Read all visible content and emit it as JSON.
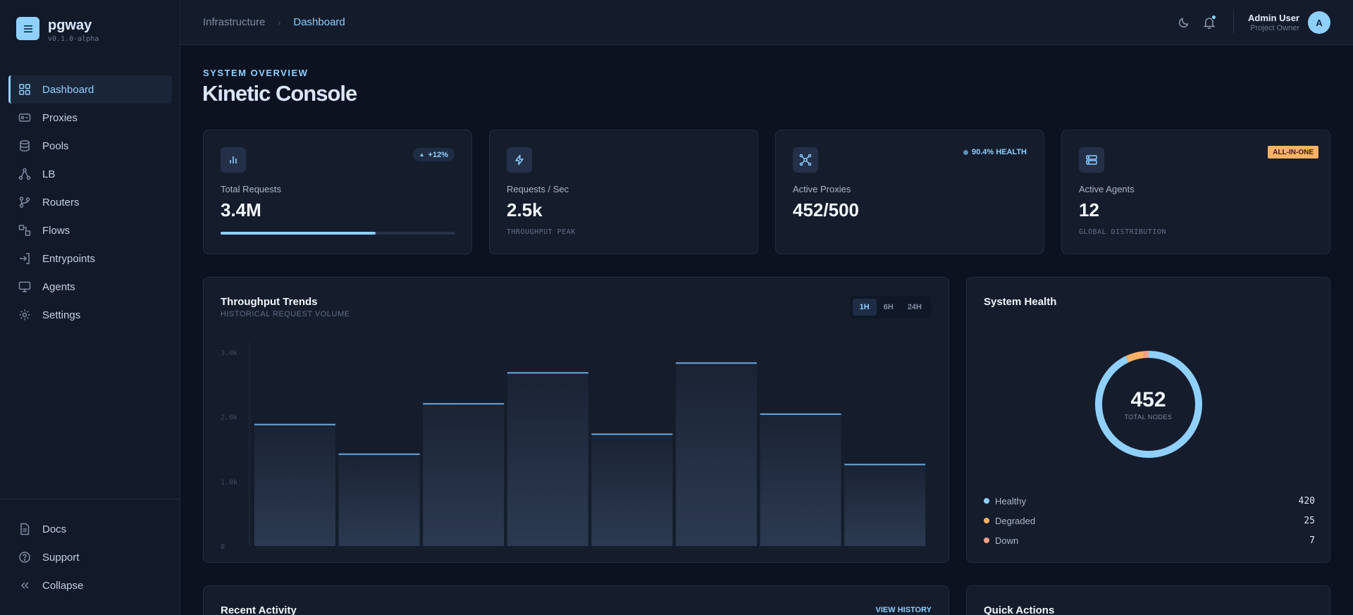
{
  "app": {
    "name": "pgway",
    "version": "v0.1.0-alpha",
    "logo_icon": "menu-icon"
  },
  "sidebar": {
    "items": [
      {
        "label": "Dashboard",
        "icon": "grid-icon",
        "active": true
      },
      {
        "label": "Proxies",
        "icon": "proxy-icon"
      },
      {
        "label": "Pools",
        "icon": "database-icon"
      },
      {
        "label": "LB",
        "icon": "network-icon"
      },
      {
        "label": "Routers",
        "icon": "git-branch-icon"
      },
      {
        "label": "Flows",
        "icon": "flow-icon"
      },
      {
        "label": "Entrypoints",
        "icon": "login-icon"
      },
      {
        "label": "Agents",
        "icon": "monitor-icon"
      },
      {
        "label": "Settings",
        "icon": "gear-icon"
      }
    ],
    "footer": [
      {
        "label": "Docs",
        "icon": "document-icon"
      },
      {
        "label": "Support",
        "icon": "help-icon"
      },
      {
        "label": "Collapse",
        "icon": "chevrons-left-icon"
      }
    ]
  },
  "header": {
    "breadcrumb": [
      "Infrastructure",
      "Dashboard"
    ],
    "user_name": "Admin User",
    "user_role": "Project Owner",
    "avatar_initial": "A"
  },
  "page": {
    "overline": "SYSTEM OVERVIEW",
    "title": "Kinetic Console"
  },
  "stats": [
    {
      "label": "Total Requests",
      "value": "3.4M",
      "badge": "+12%",
      "progress": 0.66,
      "icon": "bar-chart-icon"
    },
    {
      "label": "Requests / Sec",
      "value": "2.5k",
      "sub": "THROUGHPUT PEAK",
      "icon": "lightning-icon"
    },
    {
      "label": "Active Proxies",
      "value": "452/500",
      "badge": "90.4% HEALTH",
      "icon": "nodes-icon"
    },
    {
      "label": "Active Agents",
      "value": "12",
      "sub": "GLOBAL DISTRIBUTION",
      "badge": "ALL-IN-ONE",
      "icon": "server-icon"
    }
  ],
  "throughput": {
    "title": "Throughput Trends",
    "subtitle": "HISTORICAL REQUEST VOLUME",
    "ranges": [
      "1H",
      "6H",
      "24H"
    ],
    "active_range": "1H"
  },
  "chart_data": {
    "type": "bar",
    "title": "Throughput Trends",
    "categories": [
      "",
      "",
      "",
      "",
      "",
      "",
      "",
      ""
    ],
    "values": [
      1880,
      1420,
      2200,
      2680,
      1730,
      2830,
      2040,
      1260
    ],
    "yticks": [
      "3.0k",
      "2.0k",
      "1.0k",
      "0"
    ],
    "ylim": [
      0,
      3140
    ],
    "grid": false,
    "bar_color": "#2c3a51",
    "line_color": "#6fa8dc"
  },
  "system_health": {
    "title": "System Health",
    "total": "452",
    "total_label": "TOTAL NODES",
    "segments": [
      {
        "label": "Healthy",
        "value": 420,
        "color": "#8fd0ff"
      },
      {
        "label": "Degraded",
        "value": 25,
        "color": "#fbb265"
      },
      {
        "label": "Down",
        "value": 7,
        "color": "#f4a08a"
      }
    ]
  },
  "recent_activity": {
    "title": "Recent Activity",
    "link": "VIEW HISTORY"
  },
  "quick_actions": {
    "title": "Quick Actions"
  },
  "colors": {
    "accent": "#8fd0ff",
    "warning": "#fbb265",
    "danger": "#f4a08a",
    "bg": "#0c1220",
    "card": "#151d2c"
  }
}
